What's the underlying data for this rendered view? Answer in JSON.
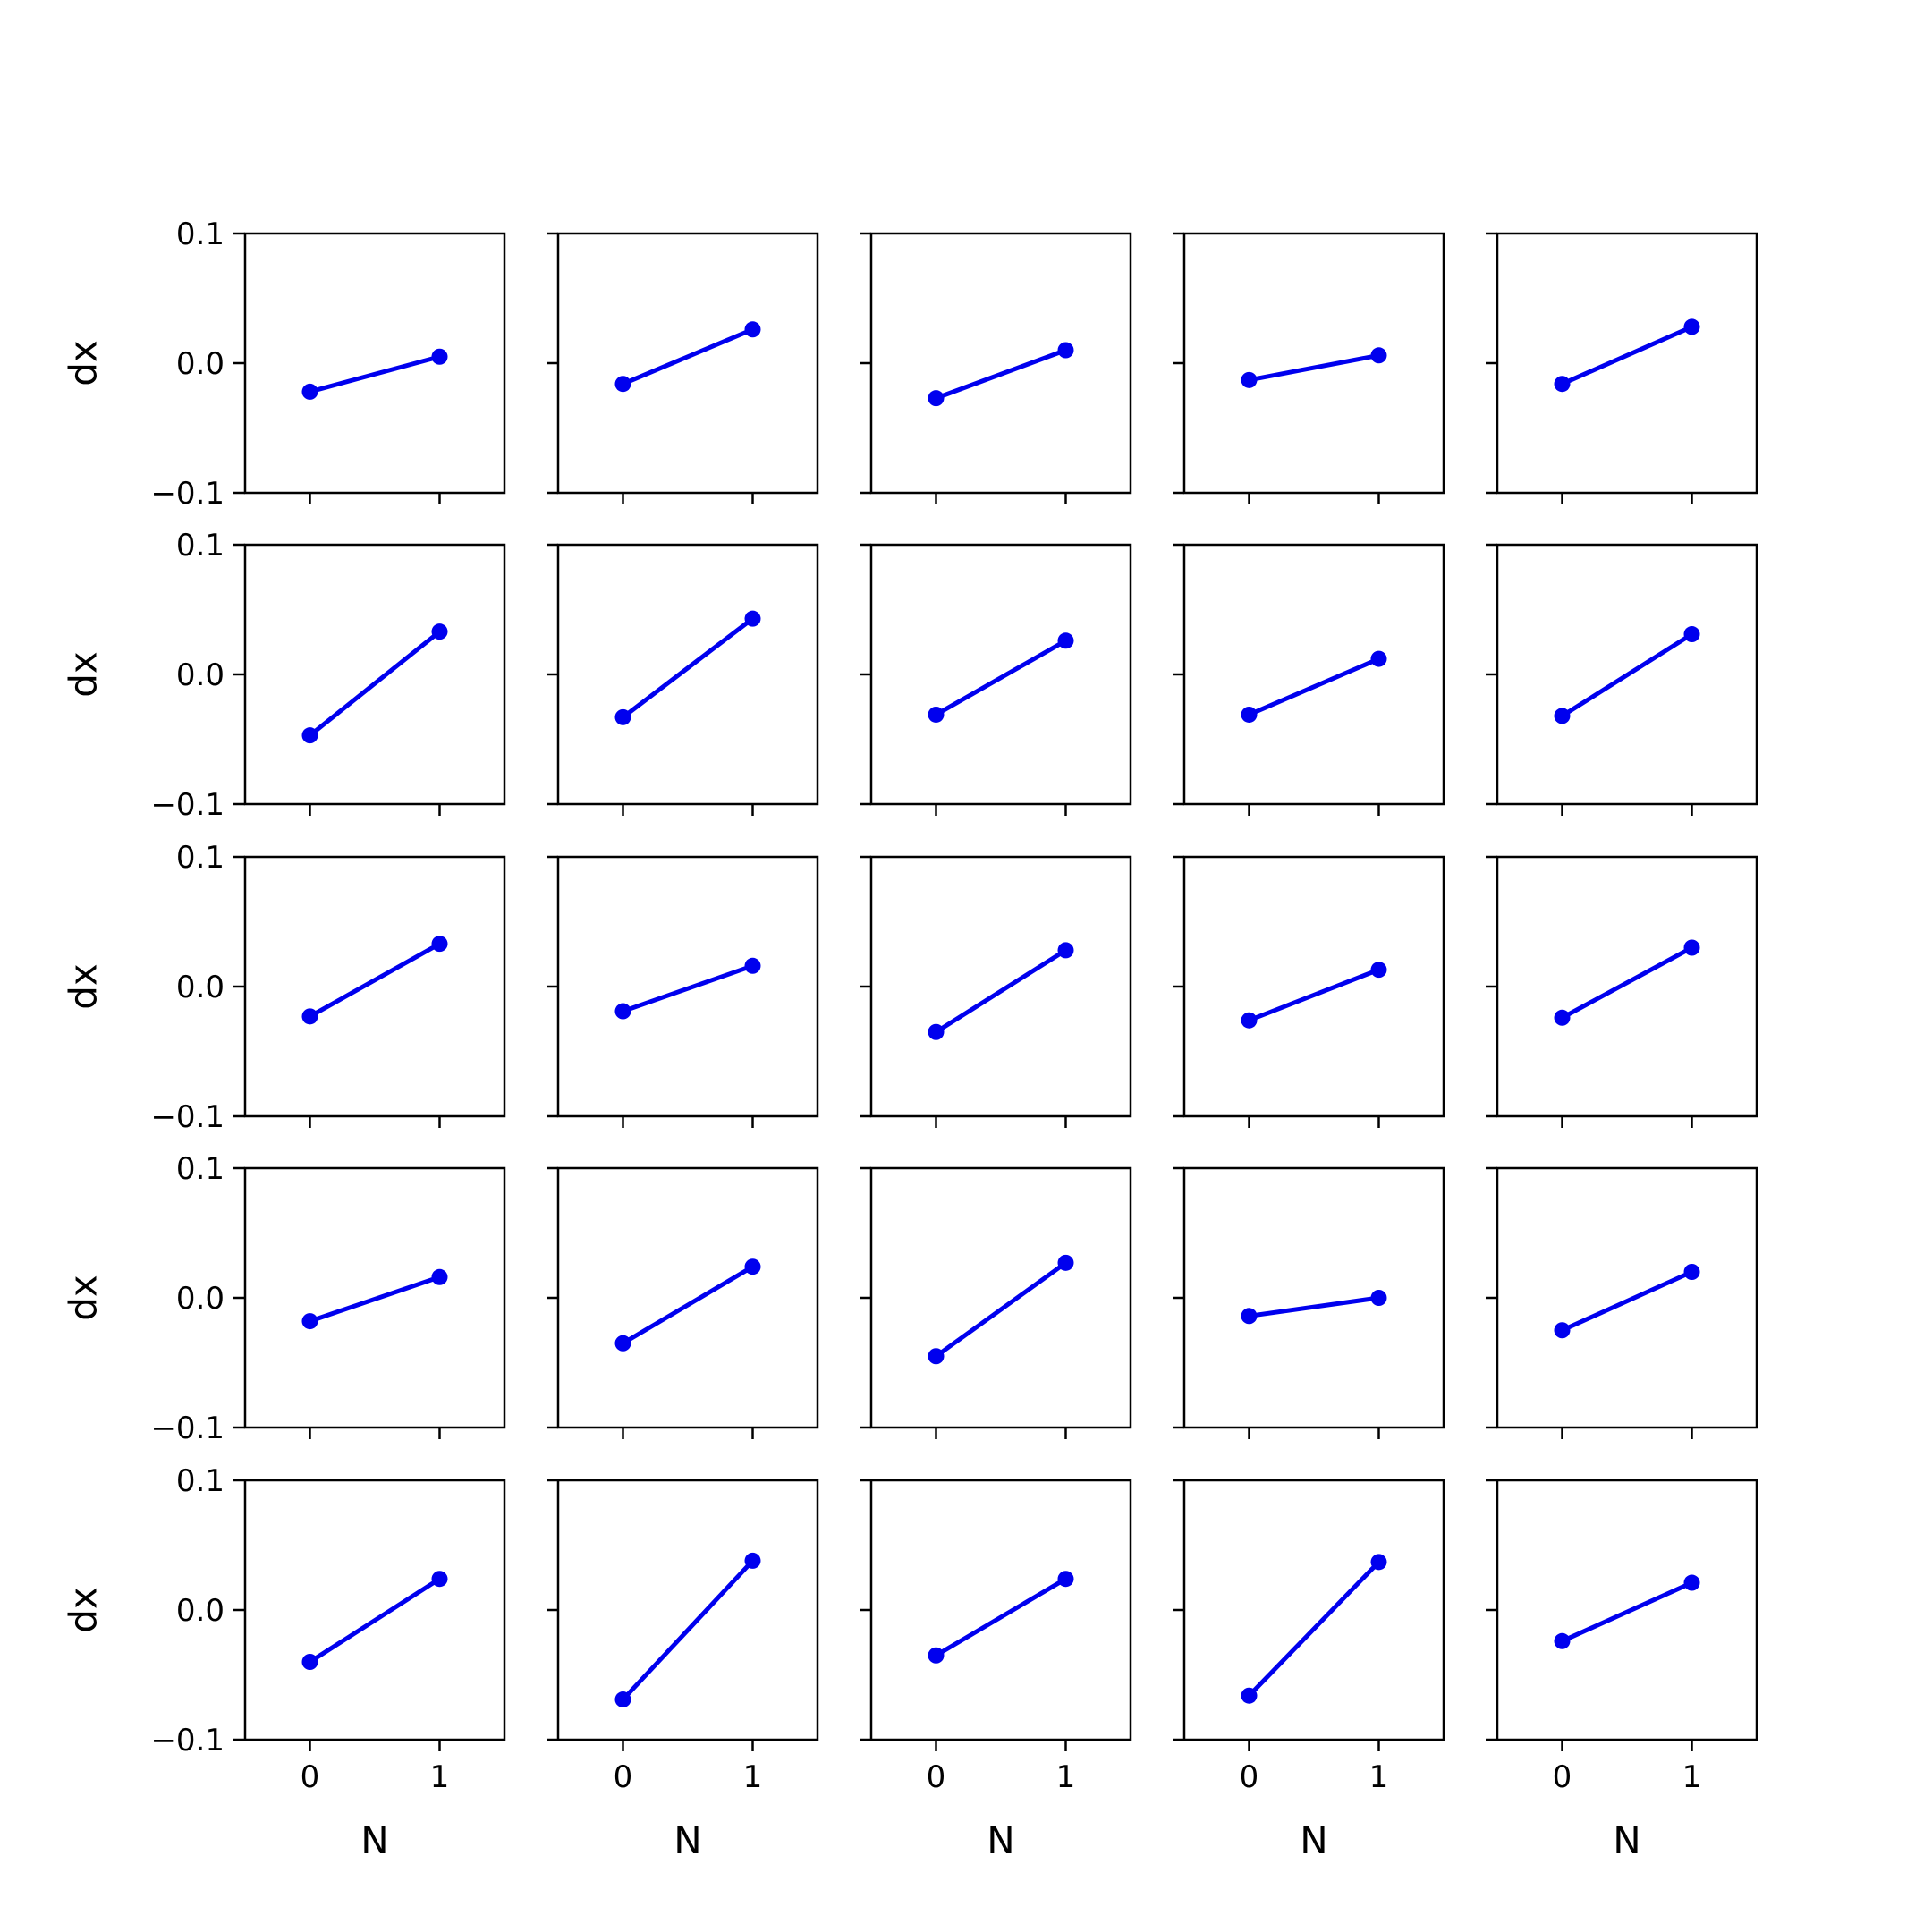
{
  "colors": {
    "series": "#0000ee",
    "axes": "#000000",
    "background": "#ffffff"
  },
  "chart_data": {
    "type": "line",
    "layout": "grid",
    "rows": 5,
    "cols": 5,
    "sharex": true,
    "sharey": true,
    "x": [
      0,
      1
    ],
    "xlim": [
      -0.5,
      1.5
    ],
    "ylim": [
      -0.1,
      0.1
    ],
    "xticks": [
      0,
      1
    ],
    "xtick_labels": [
      "0",
      "1"
    ],
    "yticks": [
      0.1,
      0.0,
      -0.1
    ],
    "ytick_labels": [
      "0.1",
      "0.0",
      "−0.1"
    ],
    "xlabel": "N",
    "ylabel": "dx",
    "marker": "circle",
    "grid": false,
    "panels": [
      [
        -0.022,
        0.005
      ],
      [
        -0.016,
        0.026
      ],
      [
        -0.027,
        0.01
      ],
      [
        -0.013,
        0.006
      ],
      [
        -0.016,
        0.028
      ],
      [
        -0.047,
        0.033
      ],
      [
        -0.033,
        0.043
      ],
      [
        -0.031,
        0.026
      ],
      [
        -0.031,
        0.012
      ],
      [
        -0.032,
        0.031
      ],
      [
        -0.023,
        0.033
      ],
      [
        -0.019,
        0.016
      ],
      [
        -0.035,
        0.028
      ],
      [
        -0.026,
        0.013
      ],
      [
        -0.024,
        0.03
      ],
      [
        -0.018,
        0.016
      ],
      [
        -0.035,
        0.024
      ],
      [
        -0.045,
        0.027
      ],
      [
        -0.014,
        0.0
      ],
      [
        -0.025,
        0.02
      ],
      [
        -0.04,
        0.024
      ],
      [
        -0.069,
        0.038
      ],
      [
        -0.035,
        0.024
      ],
      [
        -0.066,
        0.037
      ],
      [
        -0.024,
        0.021
      ]
    ]
  }
}
